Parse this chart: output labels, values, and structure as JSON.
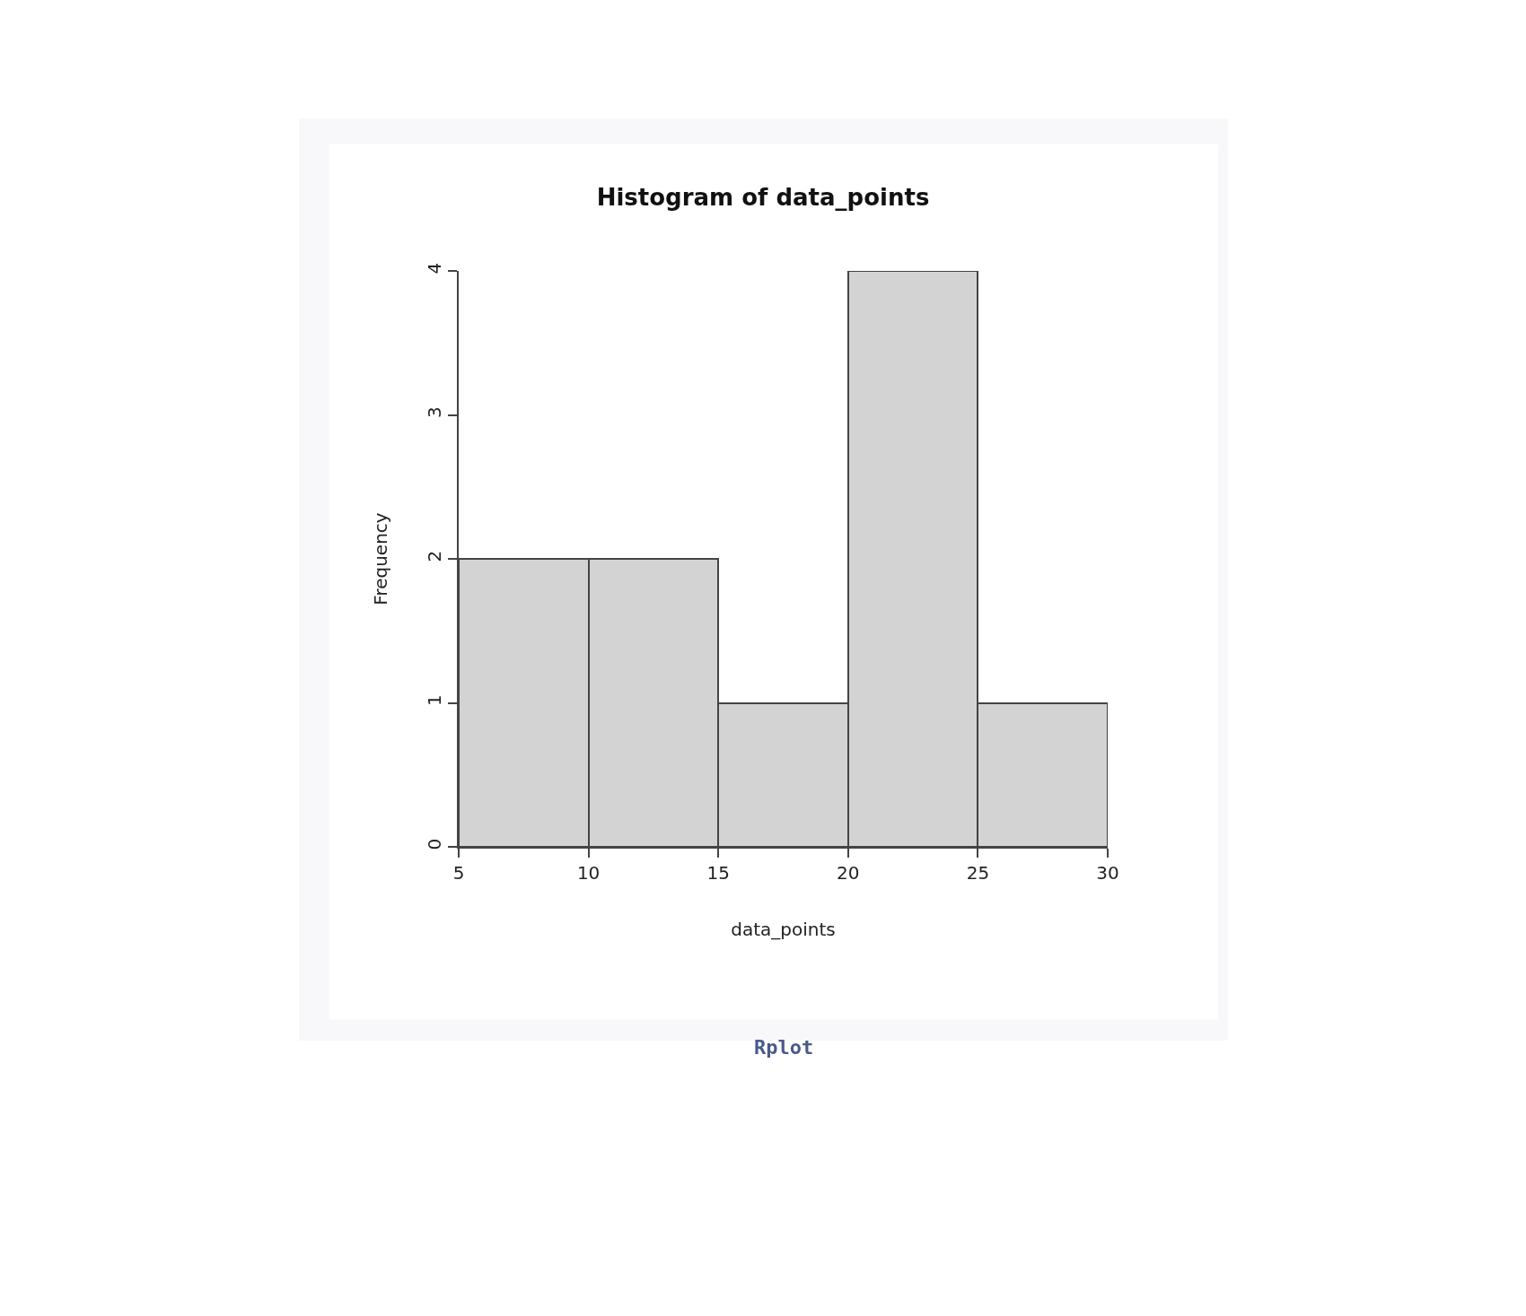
{
  "chart_data": {
    "type": "histogram",
    "title": "Histogram of data_points",
    "xlabel": "data_points",
    "ylabel": "Frequency",
    "bins": [
      5,
      10,
      15,
      20,
      25,
      30
    ],
    "values": [
      2,
      2,
      1,
      4,
      1
    ],
    "color": "#d3d3d3",
    "xlim": [
      5,
      30
    ],
    "ylim": [
      0,
      4
    ],
    "xticks": [
      5,
      10,
      15,
      20,
      25,
      30
    ],
    "yticks": [
      0,
      1,
      2,
      3,
      4
    ],
    "annotations": [
      "Rplot"
    ]
  }
}
